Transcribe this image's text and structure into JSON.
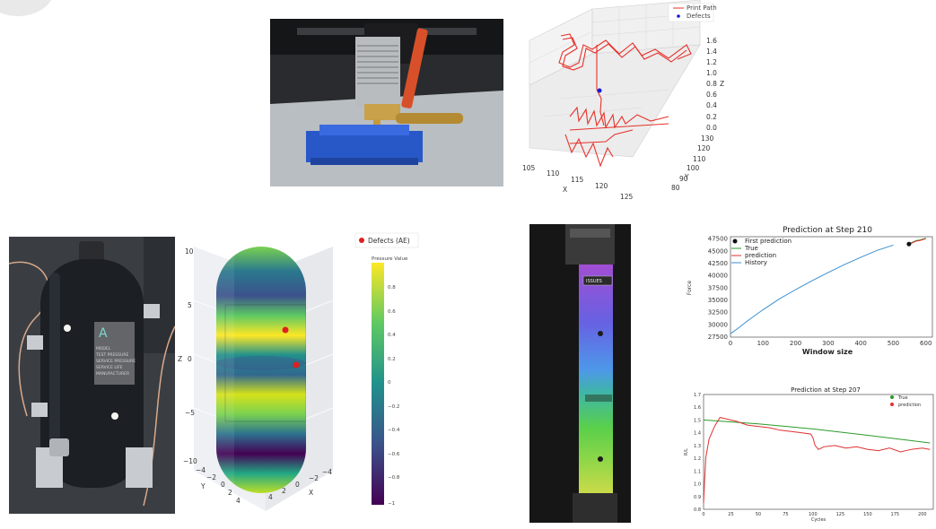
{
  "plot3d": {
    "legend": [
      "Print Path",
      "Defects"
    ],
    "x_label": "X",
    "y_label": "Y",
    "z_label": "Z",
    "x_ticks": [
      "105",
      "110",
      "115",
      "120",
      "125"
    ],
    "y_ticks": [
      "80",
      "90",
      "100",
      "110",
      "120",
      "130"
    ],
    "z_ticks": [
      "0.0",
      "0.2",
      "0.4",
      "0.6",
      "0.8",
      "1.0",
      "1.2",
      "1.4",
      "1.6"
    ],
    "colors": {
      "path": "#e8302a",
      "defect": "#1a1ad0"
    }
  },
  "tank_plot": {
    "legend": "Defects (AE)",
    "colorbar_title": "Pressure Value",
    "colorbar_ticks": [
      "0.8",
      "0.6",
      "0.4",
      "0.2",
      "0",
      "−0.2",
      "−0.4",
      "−0.6",
      "−0.8",
      "−1"
    ],
    "z_label": "Z",
    "y_label": "Y",
    "x_label": "X",
    "z_ticks": [
      "10",
      "5",
      "0",
      "−5",
      "−10"
    ],
    "y_ticks": [
      "−4",
      "−2",
      "0",
      "2",
      "4"
    ],
    "x_ticks": [
      "4",
      "2",
      "0",
      "−2",
      "−4"
    ]
  },
  "tank_photo": {
    "label_lines": [
      "MODEL",
      "TEST PRESSURE",
      "SERVICE PRESSURE",
      "SERVICE LIFE",
      "MANUFACTURER"
    ]
  },
  "specimen": {
    "tag": "ISSUES"
  },
  "chart_data": [
    {
      "type": "line",
      "title": "Prediction at Step 210",
      "xlabel": "Window size",
      "ylabel": "Force",
      "xlim": [
        0,
        620
      ],
      "ylim": [
        27500,
        48000
      ],
      "x_ticks": [
        0,
        100,
        200,
        300,
        400,
        500,
        600
      ],
      "y_ticks": [
        27500,
        30000,
        32500,
        35000,
        37500,
        40000,
        42500,
        45000,
        47500
      ],
      "legend": [
        "First prediction",
        "True",
        "prediction",
        "History"
      ],
      "series": [
        {
          "name": "History",
          "color": "#3a8fd0",
          "x": [
            0,
            25,
            50,
            100,
            150,
            200,
            250,
            300,
            350,
            400,
            450,
            500
          ],
          "y": [
            28200,
            29400,
            30700,
            33100,
            35300,
            37200,
            39000,
            40700,
            42300,
            43800,
            45200,
            46300
          ]
        },
        {
          "name": "True",
          "color": "#2a9a2a",
          "x": [
            550,
            560,
            570,
            580,
            590,
            600
          ],
          "y": [
            46600,
            46900,
            47200,
            47300,
            47500,
            47700
          ]
        },
        {
          "name": "prediction",
          "color": "#e03030",
          "x": [
            550,
            560,
            570,
            580,
            590,
            600
          ],
          "y": [
            46500,
            46800,
            47100,
            47200,
            47400,
            47600
          ]
        },
        {
          "name": "First prediction",
          "color": "#111111",
          "x": [
            548
          ],
          "y": [
            46500
          ]
        }
      ]
    },
    {
      "type": "line",
      "title": "Prediction at Step 207",
      "xlabel": "Cycles",
      "ylabel": "R/L",
      "xlim": [
        0,
        210
      ],
      "ylim": [
        0.8,
        1.7
      ],
      "x_ticks": [
        0,
        25,
        50,
        75,
        100,
        125,
        150,
        175,
        200
      ],
      "y_ticks": [
        0.8,
        0.9,
        1.0,
        1.1,
        1.2,
        1.3,
        1.4,
        1.5,
        1.6,
        1.7
      ],
      "legend": [
        "True",
        "prediction"
      ],
      "series": [
        {
          "name": "True",
          "color": "#2a9a2a",
          "x": [
            0,
            50,
            100,
            150,
            207
          ],
          "y": [
            1.5,
            1.47,
            1.43,
            1.38,
            1.32
          ]
        },
        {
          "name": "prediction",
          "color": "#e03030",
          "x": [
            0,
            2,
            5,
            10,
            15,
            20,
            30,
            40,
            50,
            60,
            70,
            80,
            90,
            98,
            100,
            102,
            105,
            110,
            120,
            130,
            140,
            150,
            160,
            170,
            180,
            190,
            200,
            207
          ],
          "y": [
            0.85,
            1.2,
            1.35,
            1.45,
            1.52,
            1.51,
            1.49,
            1.46,
            1.45,
            1.44,
            1.42,
            1.41,
            1.4,
            1.39,
            1.36,
            1.3,
            1.27,
            1.29,
            1.3,
            1.28,
            1.29,
            1.27,
            1.26,
            1.28,
            1.25,
            1.27,
            1.28,
            1.27
          ]
        }
      ]
    }
  ]
}
